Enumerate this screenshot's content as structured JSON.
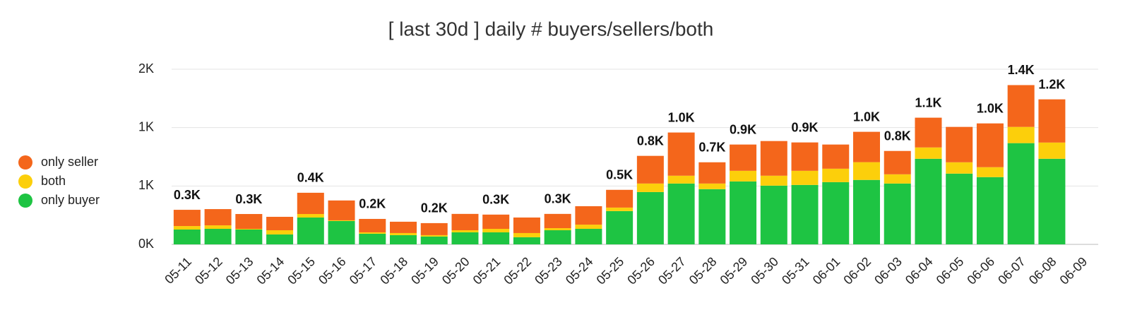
{
  "chart_data": {
    "type": "stacked_bar",
    "title": "[ last 30d ] daily # buyers/sellers/both",
    "categories": [
      "05-11",
      "05-12",
      "05-13",
      "05-14",
      "05-15",
      "05-16",
      "05-17",
      "05-18",
      "05-19",
      "05-20",
      "05-21",
      "05-22",
      "05-23",
      "05-24",
      "05-25",
      "05-26",
      "05-27",
      "05-28",
      "05-29",
      "05-30",
      "05-31",
      "06-01",
      "06-02",
      "06-03",
      "06-04",
      "06-05",
      "06-06",
      "06-07",
      "06-08",
      "06-09"
    ],
    "series": [
      {
        "name": "only buyer",
        "color": "#1ec443",
        "values": [
          127,
          133,
          127,
          85,
          230,
          200,
          91,
          79,
          67,
          103,
          103,
          61,
          121,
          133,
          285,
          448,
          521,
          473,
          539,
          503,
          509,
          533,
          552,
          521,
          733,
          606,
          576,
          867,
          733,
          null
        ]
      },
      {
        "name": "both",
        "color": "#fccf0b",
        "values": [
          30,
          30,
          6,
          36,
          30,
          6,
          12,
          18,
          12,
          18,
          30,
          36,
          18,
          36,
          30,
          73,
          67,
          48,
          91,
          85,
          121,
          115,
          152,
          79,
          97,
          97,
          85,
          139,
          139,
          null
        ]
      },
      {
        "name": "only seller",
        "color": "#f4661b",
        "values": [
          139,
          139,
          127,
          115,
          182,
          170,
          115,
          97,
          103,
          140,
          122,
          133,
          122,
          158,
          152,
          237,
          370,
          182,
          225,
          297,
          243,
          207,
          260,
          200,
          255,
          303,
          375,
          358,
          370,
          null
        ]
      }
    ],
    "total_labels": [
      "0.3K",
      null,
      "0.3K",
      null,
      "0.4K",
      null,
      "0.2K",
      null,
      "0.2K",
      null,
      "0.3K",
      null,
      "0.3K",
      null,
      "0.5K",
      "0.8K",
      "1.0K",
      "0.7K",
      "0.9K",
      null,
      "0.9K",
      null,
      "1.0K",
      "0.8K",
      "1.1K",
      null,
      "1.0K",
      "1.4K",
      "1.2K",
      null
    ],
    "ylim": [
      0,
      1500
    ],
    "yticks": [
      {
        "value": 0,
        "label": "0K"
      },
      {
        "value": 500,
        "label": "1K"
      },
      {
        "value": 1000,
        "label": "1K"
      },
      {
        "value": 1500,
        "label": "2K"
      }
    ],
    "grid": true,
    "legend": "left"
  }
}
